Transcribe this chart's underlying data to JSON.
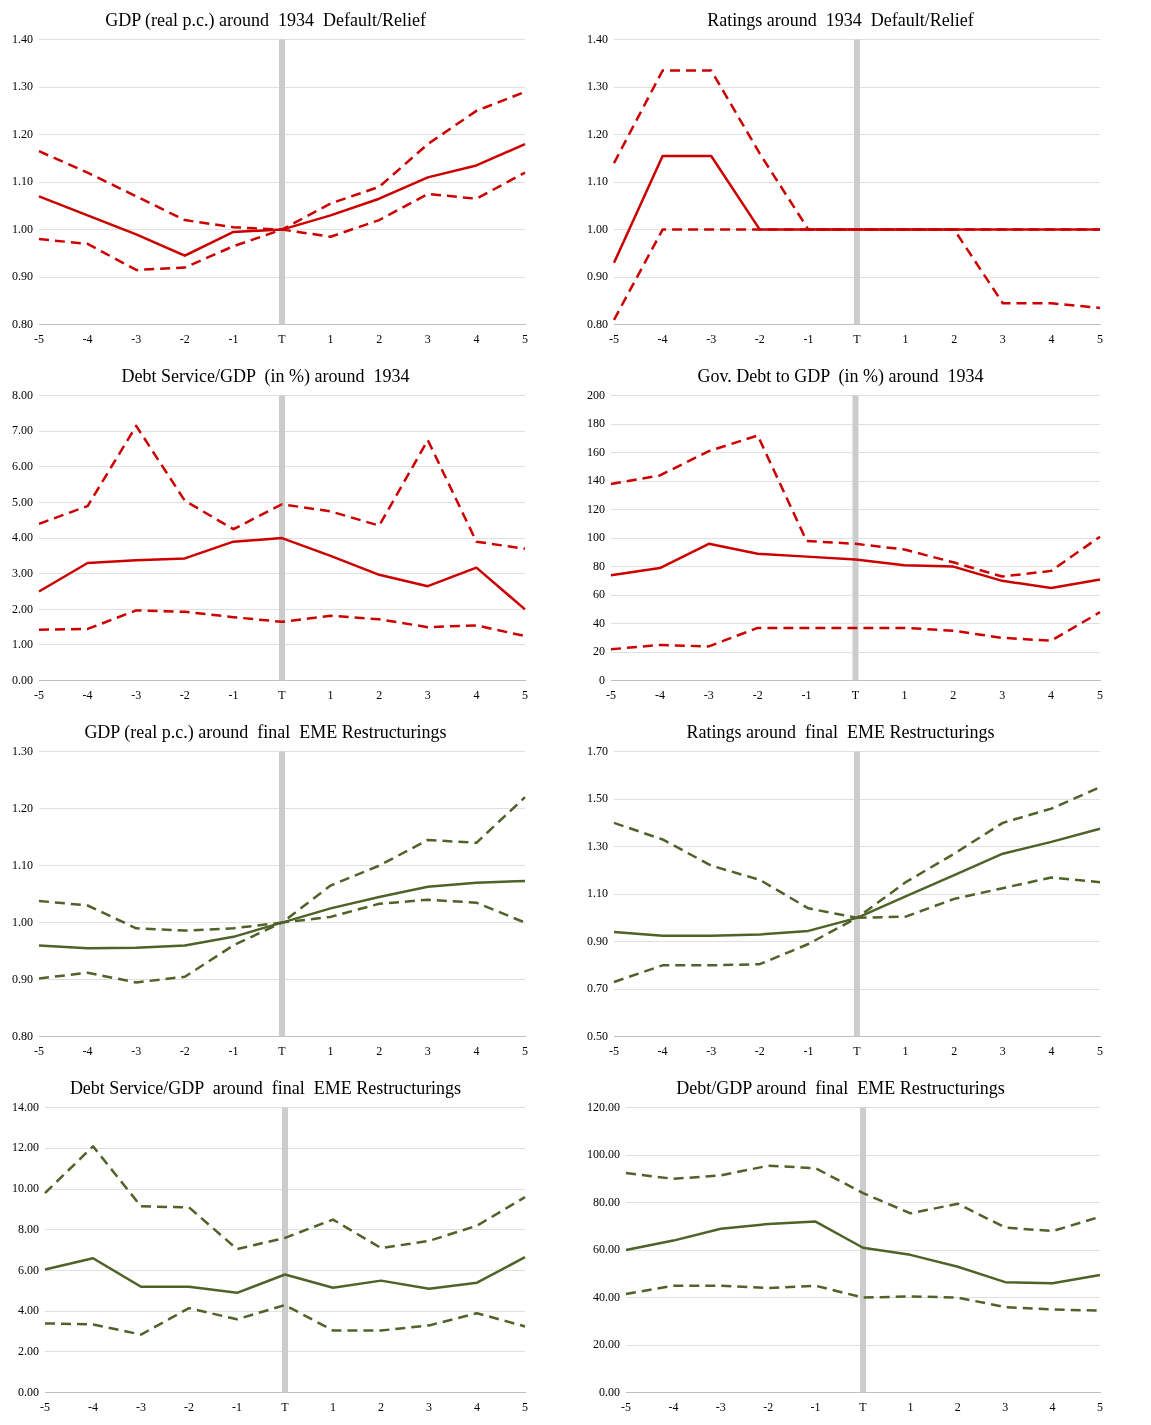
{
  "chart_data": [
    {
      "type": "line",
      "title": "GDP (real p.c.) around  1934  Default/Relief",
      "categories": [
        "-5",
        "-4",
        "-3",
        "-2",
        "-1",
        "T",
        "1",
        "2",
        "3",
        "4",
        "5"
      ],
      "ylim": [
        0.8,
        1.4
      ],
      "yticks": [
        {
          "value": 0.8,
          "label": "0.80"
        },
        {
          "value": 0.9,
          "label": "0.90"
        },
        {
          "value": 1.0,
          "label": "1.00"
        },
        {
          "value": 1.1,
          "label": "1.10"
        },
        {
          "value": 1.2,
          "label": "1.20"
        },
        {
          "value": 1.3,
          "label": "1.30"
        },
        {
          "value": 1.4,
          "label": "1.40"
        }
      ],
      "grid": "y",
      "marker": "none",
      "ref_lines": [
        {
          "axis": "x",
          "value": "T",
          "color": "#cccccc"
        }
      ],
      "series": [
        {
          "color": "#cc0000",
          "line_style": "solid",
          "values": [
            1.07,
            1.03,
            0.99,
            0.945,
            0.995,
            1.0,
            1.03,
            1.065,
            1.11,
            1.135,
            1.18
          ]
        },
        {
          "color": "#cc0000",
          "line_style": "dashed",
          "values": [
            1.165,
            1.12,
            1.07,
            1.02,
            1.005,
            1.0,
            1.055,
            1.09,
            1.18,
            1.25,
            1.29
          ]
        },
        {
          "color": "#cc0000",
          "line_style": "dashed",
          "values": [
            0.98,
            0.97,
            0.915,
            0.92,
            0.965,
            1.0,
            0.985,
            1.02,
            1.075,
            1.065,
            1.12
          ]
        }
      ]
    },
    {
      "type": "line",
      "title": "Ratings around  1934  Default/Relief",
      "categories": [
        "-5",
        "-4",
        "-3",
        "-2",
        "-1",
        "T",
        "1",
        "2",
        "3",
        "4",
        "5"
      ],
      "ylim": [
        0.8,
        1.4
      ],
      "yticks": [
        {
          "value": 0.8,
          "label": "0.80"
        },
        {
          "value": 0.9,
          "label": "0.90"
        },
        {
          "value": 1.0,
          "label": "1.00"
        },
        {
          "value": 1.1,
          "label": "1.10"
        },
        {
          "value": 1.2,
          "label": "1.20"
        },
        {
          "value": 1.3,
          "label": "1.30"
        },
        {
          "value": 1.4,
          "label": "1.40"
        }
      ],
      "grid": "y",
      "marker": "none",
      "ref_lines": [
        {
          "axis": "x",
          "value": "T",
          "color": "#cccccc"
        }
      ],
      "series": [
        {
          "color": "#cc0000",
          "line_style": "solid",
          "values": [
            0.93,
            1.155,
            1.155,
            1.0,
            1.0,
            1.0,
            1.0,
            1.0,
            1.0,
            1.0,
            1.0
          ]
        },
        {
          "color": "#cc0000",
          "line_style": "dashed",
          "values": [
            1.14,
            1.335,
            1.335,
            1.16,
            1.0,
            1.0,
            1.0,
            1.0,
            1.0,
            1.0,
            1.0
          ]
        },
        {
          "color": "#cc0000",
          "line_style": "dashed",
          "values": [
            0.81,
            1.0,
            1.0,
            1.0,
            1.0,
            1.0,
            1.0,
            1.0,
            0.845,
            0.845,
            0.835
          ]
        }
      ]
    },
    {
      "type": "line",
      "title": "Debt Service/GDP  (in %) around  1934",
      "categories": [
        "-5",
        "-4",
        "-3",
        "-2",
        "-1",
        "T",
        "1",
        "2",
        "3",
        "4",
        "5"
      ],
      "ylim": [
        0,
        8
      ],
      "yticks": [
        {
          "value": 0,
          "label": "0.00"
        },
        {
          "value": 1,
          "label": "1.00"
        },
        {
          "value": 2,
          "label": "2.00"
        },
        {
          "value": 3,
          "label": "3.00"
        },
        {
          "value": 4,
          "label": "4.00"
        },
        {
          "value": 5,
          "label": "5.00"
        },
        {
          "value": 6,
          "label": "6.00"
        },
        {
          "value": 7,
          "label": "7.00"
        },
        {
          "value": 8,
          "label": "8.00"
        }
      ],
      "grid": "y",
      "marker": "none",
      "ref_lines": [
        {
          "axis": "x",
          "value": "T",
          "color": "#cccccc"
        }
      ],
      "series": [
        {
          "color": "#cc0000",
          "line_style": "solid",
          "values": [
            2.5,
            3.3,
            3.38,
            3.43,
            3.9,
            4.0,
            3.5,
            2.97,
            2.65,
            3.17,
            2.0
          ]
        },
        {
          "color": "#cc0000",
          "line_style": "dashed",
          "values": [
            4.4,
            4.9,
            7.15,
            5.05,
            4.25,
            4.95,
            4.75,
            4.35,
            6.75,
            3.9,
            3.7
          ]
        },
        {
          "color": "#cc0000",
          "line_style": "dashed",
          "values": [
            1.43,
            1.45,
            1.97,
            1.93,
            1.78,
            1.65,
            1.82,
            1.72,
            1.5,
            1.55,
            1.25
          ]
        }
      ]
    },
    {
      "type": "line",
      "title": "Gov. Debt to GDP  (in %) around  1934",
      "categories": [
        "-5",
        "-4",
        "-3",
        "-2",
        "-1",
        "T",
        "1",
        "2",
        "3",
        "4",
        "5"
      ],
      "ylim": [
        0,
        200
      ],
      "yticks": [
        0,
        20,
        40,
        60,
        80,
        100,
        120,
        140,
        160,
        180,
        200
      ],
      "grid": "y",
      "marker": "none",
      "ref_lines": [
        {
          "axis": "x",
          "value": "T",
          "color": "#cccccc"
        }
      ],
      "series": [
        {
          "color": "#cc0000",
          "line_style": "solid",
          "values": [
            74,
            79,
            96,
            89,
            87,
            85,
            81,
            80,
            70,
            65,
            71
          ]
        },
        {
          "color": "#cc0000",
          "line_style": "dashed",
          "values": [
            138,
            144,
            161,
            172,
            98,
            96,
            92,
            83,
            73,
            77,
            101
          ]
        },
        {
          "color": "#cc0000",
          "line_style": "dashed",
          "values": [
            22,
            25,
            24,
            37,
            37,
            37,
            37,
            35,
            30,
            28,
            48
          ]
        }
      ]
    },
    {
      "type": "line",
      "title": "GDP (real p.c.) around  final  EME Restructurings",
      "categories": [
        "-5",
        "-4",
        "-3",
        "-2",
        "-1",
        "T",
        "1",
        "2",
        "3",
        "4",
        "5"
      ],
      "ylim": [
        0.8,
        1.3
      ],
      "yticks": [
        {
          "value": 0.8,
          "label": "0.80"
        },
        {
          "value": 0.9,
          "label": "0.90"
        },
        {
          "value": 1.0,
          "label": "1.00"
        },
        {
          "value": 1.1,
          "label": "1.10"
        },
        {
          "value": 1.2,
          "label": "1.20"
        },
        {
          "value": 1.3,
          "label": "1.30"
        }
      ],
      "grid": "y",
      "marker": "none",
      "ref_lines": [
        {
          "axis": "x",
          "value": "T",
          "color": "#cccccc"
        }
      ],
      "series": [
        {
          "color": "#4f6228",
          "line_style": "solid",
          "values": [
            0.96,
            0.955,
            0.956,
            0.96,
            0.975,
            1.0,
            1.025,
            1.045,
            1.063,
            1.07,
            1.073
          ]
        },
        {
          "color": "#4f6228",
          "line_style": "dashed",
          "values": [
            1.038,
            1.03,
            0.99,
            0.986,
            0.99,
            1.0,
            1.065,
            1.1,
            1.145,
            1.14,
            1.22
          ]
        },
        {
          "color": "#4f6228",
          "line_style": "dashed",
          "values": [
            0.902,
            0.912,
            0.895,
            0.905,
            0.96,
            1.0,
            1.01,
            1.033,
            1.04,
            1.035,
            1.0
          ]
        }
      ]
    },
    {
      "type": "line",
      "title": "Ratings around  final  EME Restructurings",
      "categories": [
        "-5",
        "-4",
        "-3",
        "-2",
        "-1",
        "T",
        "1",
        "2",
        "3",
        "4",
        "5"
      ],
      "ylim": [
        0.5,
        1.7
      ],
      "yticks": [
        {
          "value": 0.5,
          "label": "0.50"
        },
        {
          "value": 0.7,
          "label": "0.70"
        },
        {
          "value": 0.9,
          "label": "0.90"
        },
        {
          "value": 1.1,
          "label": "1.10"
        },
        {
          "value": 1.3,
          "label": "1.30"
        },
        {
          "value": 1.5,
          "label": "1.50"
        },
        {
          "value": 1.7,
          "label": "1.70"
        }
      ],
      "grid": "y",
      "marker": "none",
      "ref_lines": [
        {
          "axis": "x",
          "value": "T",
          "color": "#cccccc"
        }
      ],
      "series": [
        {
          "color": "#4f6228",
          "line_style": "solid",
          "values": [
            0.94,
            0.925,
            0.925,
            0.93,
            0.945,
            1.0,
            1.09,
            1.18,
            1.27,
            1.32,
            1.375
          ]
        },
        {
          "color": "#4f6228",
          "line_style": "dashed",
          "values": [
            1.4,
            1.33,
            1.22,
            1.16,
            1.04,
            1.0,
            1.15,
            1.27,
            1.4,
            1.46,
            1.55
          ]
        },
        {
          "color": "#4f6228",
          "line_style": "dashed",
          "values": [
            0.73,
            0.8,
            0.8,
            0.805,
            0.89,
            1.0,
            1.005,
            1.08,
            1.125,
            1.17,
            1.15
          ]
        }
      ]
    },
    {
      "type": "line",
      "title": "Debt Service/GDP  around  final  EME Restructurings",
      "categories": [
        "-5",
        "-4",
        "-3",
        "-2",
        "-1",
        "T",
        "1",
        "2",
        "3",
        "4",
        "5"
      ],
      "ylim": [
        0,
        14
      ],
      "yticks": [
        {
          "value": 0,
          "label": "0.00"
        },
        {
          "value": 2,
          "label": "2.00"
        },
        {
          "value": 4,
          "label": "4.00"
        },
        {
          "value": 6,
          "label": "6.00"
        },
        {
          "value": 8,
          "label": "8.00"
        },
        {
          "value": 10,
          "label": "10.00"
        },
        {
          "value": 12,
          "label": "12.00"
        },
        {
          "value": 14,
          "label": "14.00"
        }
      ],
      "grid": "y",
      "marker": "none",
      "ref_lines": [
        {
          "axis": "x",
          "value": "T",
          "color": "#cccccc"
        }
      ],
      "series": [
        {
          "color": "#4f6228",
          "line_style": "solid",
          "values": [
            6.05,
            6.6,
            5.2,
            5.2,
            4.9,
            5.8,
            5.15,
            5.5,
            5.1,
            5.4,
            6.65
          ]
        },
        {
          "color": "#4f6228",
          "line_style": "dashed",
          "values": [
            9.8,
            12.1,
            9.15,
            9.1,
            7.05,
            7.6,
            8.5,
            7.1,
            7.45,
            8.2,
            9.6
          ]
        },
        {
          "color": "#4f6228",
          "line_style": "dashed",
          "values": [
            3.4,
            3.35,
            2.85,
            4.15,
            3.6,
            4.3,
            3.05,
            3.05,
            3.3,
            3.9,
            3.25
          ]
        }
      ]
    },
    {
      "type": "line",
      "title": "Debt/GDP around  final  EME Restructurings",
      "categories": [
        "-5",
        "-4",
        "-3",
        "-2",
        "-1",
        "T",
        "1",
        "2",
        "3",
        "4",
        "5"
      ],
      "ylim": [
        0,
        120
      ],
      "yticks": [
        {
          "value": 0,
          "label": "0.00"
        },
        {
          "value": 20,
          "label": "20.00"
        },
        {
          "value": 40,
          "label": "40.00"
        },
        {
          "value": 60,
          "label": "60.00"
        },
        {
          "value": 80,
          "label": "80.00"
        },
        {
          "value": 100,
          "label": "100.00"
        },
        {
          "value": 120,
          "label": "120.00"
        }
      ],
      "grid": "y",
      "marker": "none",
      "ref_lines": [
        {
          "axis": "x",
          "value": "T",
          "color": "#cccccc"
        }
      ],
      "series": [
        {
          "color": "#4f6228",
          "line_style": "solid",
          "values": [
            60,
            64,
            69,
            71,
            72,
            61,
            58,
            53,
            46.5,
            46,
            49.5
          ]
        },
        {
          "color": "#4f6228",
          "line_style": "dashed",
          "values": [
            92.5,
            90,
            91.5,
            95.5,
            94.5,
            84,
            75.5,
            79.5,
            69.5,
            68,
            74
          ]
        },
        {
          "color": "#4f6228",
          "line_style": "dashed",
          "values": [
            41.5,
            45,
            45,
            44,
            45,
            40,
            40.5,
            40,
            36,
            35,
            34.5
          ]
        }
      ]
    }
  ]
}
